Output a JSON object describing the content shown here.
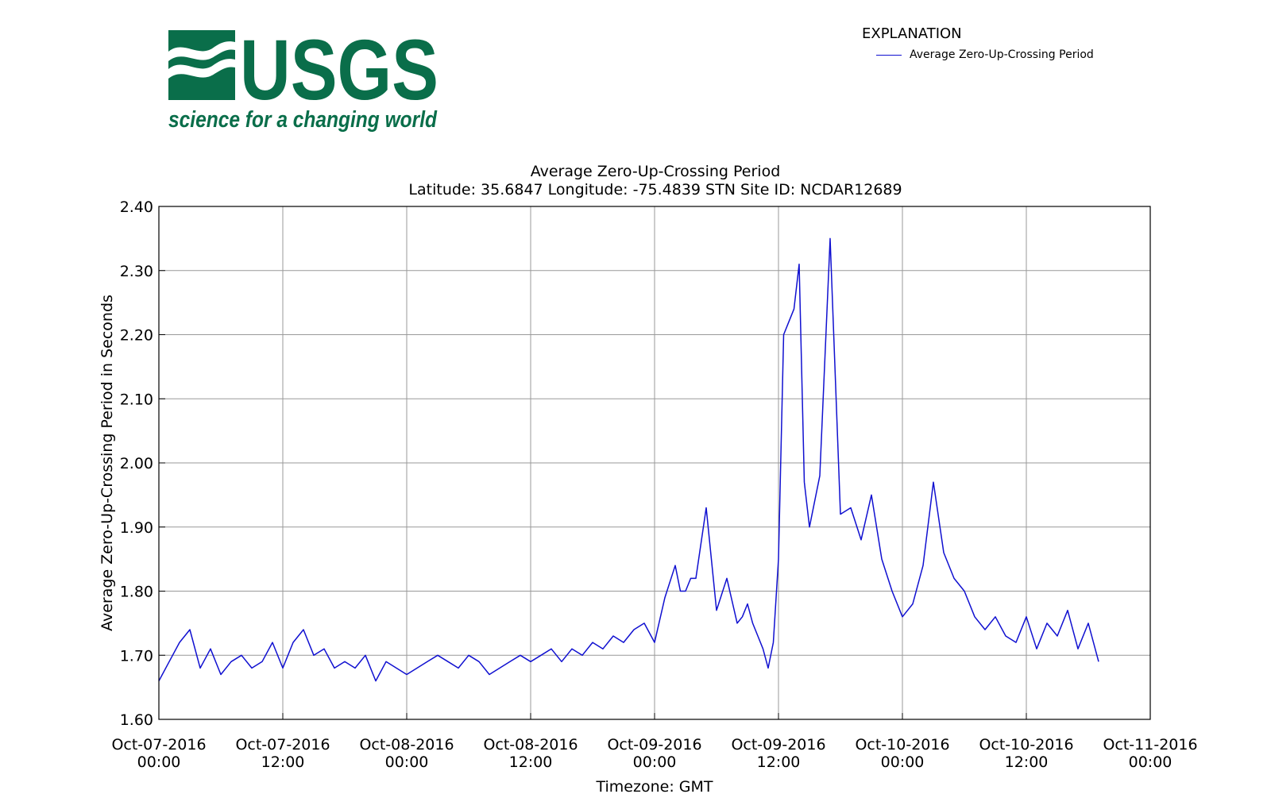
{
  "logo": {
    "wordmark": "USGS",
    "tagline": "science for a changing world",
    "color": "#0a6e4a"
  },
  "legend": {
    "title": "EXPLANATION",
    "entries": [
      {
        "label": "Average Zero-Up-Crossing Period",
        "color": "#1010d0"
      }
    ]
  },
  "chart_data": {
    "type": "line",
    "title": "Average Zero-Up-Crossing Period",
    "subtitle": "Latitude: 35.6847 Longitude: -75.4839 STN Site ID: NCDAR12689",
    "xlabel": "Timezone: GMT",
    "ylabel": "Average Zero-Up-Crossing Period in Seconds",
    "ylim": [
      1.6,
      2.4
    ],
    "xlim": [
      "2016-10-07 00:00",
      "2016-10-11 00:00"
    ],
    "grid": true,
    "legend_position": "top-right",
    "y_ticks": [
      "1.60",
      "1.70",
      "1.80",
      "1.90",
      "2.00",
      "2.10",
      "2.20",
      "2.30",
      "2.40"
    ],
    "x_ticks": [
      {
        "date": "Oct-07-2016",
        "time": "00:00"
      },
      {
        "date": "Oct-07-2016",
        "time": "12:00"
      },
      {
        "date": "Oct-08-2016",
        "time": "00:00"
      },
      {
        "date": "Oct-08-2016",
        "time": "12:00"
      },
      {
        "date": "Oct-09-2016",
        "time": "00:00"
      },
      {
        "date": "Oct-09-2016",
        "time": "12:00"
      },
      {
        "date": "Oct-10-2016",
        "time": "00:00"
      },
      {
        "date": "Oct-10-2016",
        "time": "12:00"
      },
      {
        "date": "Oct-11-2016",
        "time": "00:00"
      }
    ],
    "series": [
      {
        "name": "Average Zero-Up-Crossing Period",
        "color": "#1010d0",
        "x": [
          "2016-10-07 00:00",
          "2016-10-07 01:00",
          "2016-10-07 02:00",
          "2016-10-07 03:00",
          "2016-10-07 04:00",
          "2016-10-07 05:00",
          "2016-10-07 06:00",
          "2016-10-07 07:00",
          "2016-10-07 08:00",
          "2016-10-07 09:00",
          "2016-10-07 10:00",
          "2016-10-07 11:00",
          "2016-10-07 12:00",
          "2016-10-07 13:00",
          "2016-10-07 14:00",
          "2016-10-07 15:00",
          "2016-10-07 16:00",
          "2016-10-07 17:00",
          "2016-10-07 18:00",
          "2016-10-07 19:00",
          "2016-10-07 20:00",
          "2016-10-07 21:00",
          "2016-10-07 22:00",
          "2016-10-07 23:00",
          "2016-10-08 00:00",
          "2016-10-08 01:00",
          "2016-10-08 02:00",
          "2016-10-08 03:00",
          "2016-10-08 04:00",
          "2016-10-08 05:00",
          "2016-10-08 06:00",
          "2016-10-08 07:00",
          "2016-10-08 08:00",
          "2016-10-08 09:00",
          "2016-10-08 10:00",
          "2016-10-08 11:00",
          "2016-10-08 12:00",
          "2016-10-08 13:00",
          "2016-10-08 14:00",
          "2016-10-08 15:00",
          "2016-10-08 16:00",
          "2016-10-08 17:00",
          "2016-10-08 18:00",
          "2016-10-08 19:00",
          "2016-10-08 20:00",
          "2016-10-08 21:00",
          "2016-10-08 22:00",
          "2016-10-08 23:00",
          "2016-10-09 00:00",
          "2016-10-09 01:00",
          "2016-10-09 02:00",
          "2016-10-09 02:30",
          "2016-10-09 03:00",
          "2016-10-09 03:30",
          "2016-10-09 04:00",
          "2016-10-09 05:00",
          "2016-10-09 06:00",
          "2016-10-09 07:00",
          "2016-10-09 08:00",
          "2016-10-09 08:30",
          "2016-10-09 09:00",
          "2016-10-09 09:30",
          "2016-10-09 10:00",
          "2016-10-09 10:30",
          "2016-10-09 11:00",
          "2016-10-09 11:30",
          "2016-10-09 12:00",
          "2016-10-09 12:30",
          "2016-10-09 13:00",
          "2016-10-09 13:30",
          "2016-10-09 14:00",
          "2016-10-09 14:30",
          "2016-10-09 15:00",
          "2016-10-09 16:00",
          "2016-10-09 17:00",
          "2016-10-09 18:00",
          "2016-10-09 19:00",
          "2016-10-09 20:00",
          "2016-10-09 21:00",
          "2016-10-09 22:00",
          "2016-10-09 23:00",
          "2016-10-10 00:00",
          "2016-10-10 01:00",
          "2016-10-10 02:00",
          "2016-10-10 03:00",
          "2016-10-10 04:00",
          "2016-10-10 05:00",
          "2016-10-10 06:00",
          "2016-10-10 07:00",
          "2016-10-10 08:00",
          "2016-10-10 09:00",
          "2016-10-10 10:00",
          "2016-10-10 11:00",
          "2016-10-10 12:00",
          "2016-10-10 13:00",
          "2016-10-10 14:00",
          "2016-10-10 15:00",
          "2016-10-10 16:00",
          "2016-10-10 17:00",
          "2016-10-10 18:00",
          "2016-10-10 19:00"
        ],
        "y": [
          1.66,
          1.69,
          1.72,
          1.74,
          1.68,
          1.71,
          1.67,
          1.69,
          1.7,
          1.68,
          1.69,
          1.72,
          1.68,
          1.72,
          1.74,
          1.7,
          1.71,
          1.68,
          1.69,
          1.68,
          1.7,
          1.66,
          1.69,
          1.68,
          1.67,
          1.68,
          1.69,
          1.7,
          1.69,
          1.68,
          1.7,
          1.69,
          1.67,
          1.68,
          1.69,
          1.7,
          1.69,
          1.7,
          1.71,
          1.69,
          1.71,
          1.7,
          1.72,
          1.71,
          1.73,
          1.72,
          1.74,
          1.75,
          1.72,
          1.79,
          1.84,
          1.8,
          1.8,
          1.82,
          1.82,
          1.93,
          1.77,
          1.82,
          1.75,
          1.76,
          1.78,
          1.75,
          1.73,
          1.71,
          1.68,
          1.72,
          1.85,
          2.2,
          2.22,
          2.24,
          2.31,
          1.97,
          1.9,
          1.98,
          2.35,
          1.92,
          1.93,
          1.88,
          1.95,
          1.85,
          1.8,
          1.76,
          1.78,
          1.84,
          1.97,
          1.86,
          1.82,
          1.8,
          1.76,
          1.74,
          1.76,
          1.73,
          1.72,
          1.76,
          1.71,
          1.75,
          1.73,
          1.77,
          1.71,
          1.75,
          1.69
        ]
      }
    ]
  }
}
